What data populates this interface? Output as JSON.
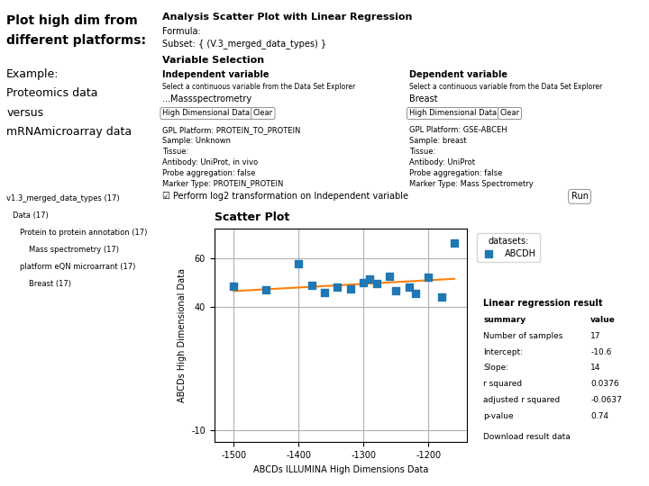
{
  "chart_data": {
    "type": "scatter",
    "title": "Scatter Plot",
    "x_label": "ABCDs ILLUMINA High Dimensions Data",
    "y_label": "ABCDs High Dimensional Data",
    "series": [
      {
        "name": "ABCDH",
        "type": "scatter",
        "color": "#1f77b4",
        "marker": "square",
        "x": [
          -1500,
          -1450,
          -1400,
          -1380,
          -1360,
          -1340,
          -1320,
          -1300,
          -1290,
          -1280,
          -1260,
          -1250,
          -1230,
          -1220,
          -1200,
          -1180,
          -1160
        ],
        "values": [
          48.5,
          47.0,
          57.5,
          48.8,
          46.0,
          48.2,
          47.5,
          50.0,
          51.5,
          49.5,
          52.5,
          46.5,
          48.0,
          45.5,
          52.0,
          44.0,
          66.0
        ]
      },
      {
        "type": "line",
        "color": "#ff7f0e",
        "line_style": "solid",
        "x": [
          -1500,
          -1160
        ],
        "values": [
          46.5,
          51.5
        ]
      }
    ],
    "xlim": [
      -1530,
      -1140
    ],
    "xticks": [
      -1500,
      -1400,
      -1300,
      -1200
    ],
    "ylim": [
      -15,
      72
    ],
    "yticks": [
      -10,
      40,
      60
    ],
    "grid": true,
    "legend": "upper left",
    "legend_title": "datasets:",
    "annotations": {
      "left_titles": [
        "Plot high dim from",
        "different platforms:"
      ],
      "left_example": [
        "Example:",
        "Proteomics data",
        "versus",
        "mRNAmicroarray data"
      ],
      "tree": [
        "v1.3_merged_data_types (17)",
        "Data (17)",
        "Protein to protein annotation (17)",
        "Mass spectrometry (17)",
        "platform eQN microarrant (17)",
        "Breast (17)"
      ],
      "header": [
        "Analysis Scatter Plot with Linear Regression",
        "Formula:",
        "Subset: { (V.3_merged_data_types) }"
      ],
      "variable_selection": "Variable Selection",
      "variables_left": [
        "Independent variable",
        "Select a continuous variable from the Data Set Explorer",
        "...Massspectrometry"
      ],
      "variables_right": [
        "Dependent variable",
        "Select a continuous variable from the Data Set Explorer",
        "Breast"
      ],
      "buttons": [
        "High Dimensional Data",
        "Clear",
        "High Dimensional Data",
        "Clear"
      ],
      "gpl_left": [
        "GPL Platform: PROTEIN_TO_PROTEIN",
        "Sample: Unknown",
        "Tissue:",
        "Antibody: UniProt, in vivo",
        "Probe aggregation: false",
        "Marker Type: PROTEIN_PROTEIN"
      ],
      "gpl_right": [
        "GPL Platform: GSE-ABCEH",
        "Sample: breast",
        "Tissue:",
        "Antibody: UniProt",
        "Probe aggregation: false",
        "Marker Type: Mass Spectrometry"
      ],
      "checkbox": "☑ Perform log2 transformation on Independent variable",
      "run_button": "Run",
      "table_title": "Linear regression result",
      "link": "Download result data"
    },
    "table": [
      [
        "summary",
        "value"
      ],
      [
        "Number of samples",
        "17"
      ],
      [
        "Intercept:",
        "-10.6"
      ],
      [
        "Slope:",
        "14"
      ],
      [
        "r squared",
        "0.0376"
      ],
      [
        "adjusted r squared",
        "-0.0637"
      ],
      [
        "p-value",
        "0.74"
      ]
    ]
  }
}
